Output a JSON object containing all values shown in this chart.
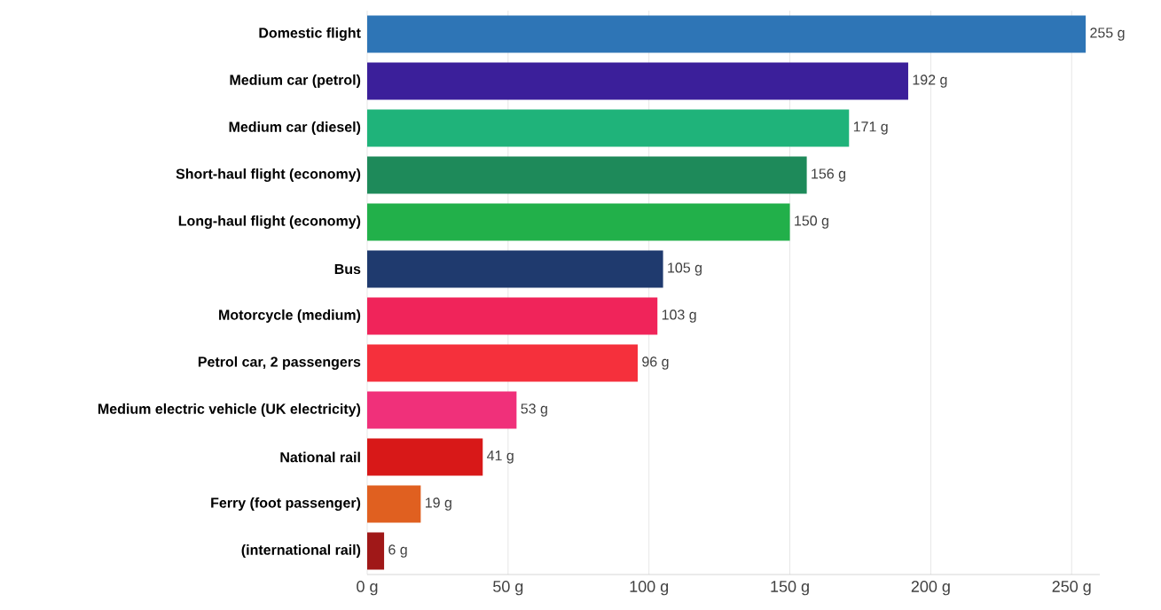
{
  "chart_data": {
    "type": "bar",
    "orientation": "horizontal",
    "categories": [
      "Domestic flight",
      "Medium car (petrol)",
      "Medium car (diesel)",
      "Short-haul flight (economy)",
      "Long-haul flight (economy)",
      "Bus",
      "Motorcycle (medium)",
      "Petrol car, 2 passengers",
      "Medium electric vehicle (UK electricity)",
      "National rail",
      "Ferry (foot passenger)",
      "(international rail)"
    ],
    "values": [
      255,
      192,
      171,
      156,
      150,
      105,
      103,
      96,
      53,
      41,
      19,
      6
    ],
    "value_labels": [
      "255 g",
      "192 g",
      "171 g",
      "156 g",
      "150 g",
      "105 g",
      "103 g",
      "96 g",
      "53 g",
      "41 g",
      "19 g",
      "6 g"
    ],
    "colors": [
      "#2e75b6",
      "#3b1f9a",
      "#1fb37a",
      "#1e8a5a",
      "#22b04a",
      "#1f3a6e",
      "#f0245a",
      "#f5303c",
      "#f0307a",
      "#d81818",
      "#e06020",
      "#a01818"
    ],
    "xlim": [
      0,
      260
    ],
    "xticks": [
      {
        "value": 0,
        "label": "0 g"
      },
      {
        "value": 50,
        "label": "50 g"
      },
      {
        "value": 100,
        "label": "100 g"
      },
      {
        "value": 150,
        "label": "150 g"
      },
      {
        "value": 200,
        "label": "200 g"
      },
      {
        "value": 250,
        "label": "250 g"
      }
    ],
    "grid": "x"
  }
}
